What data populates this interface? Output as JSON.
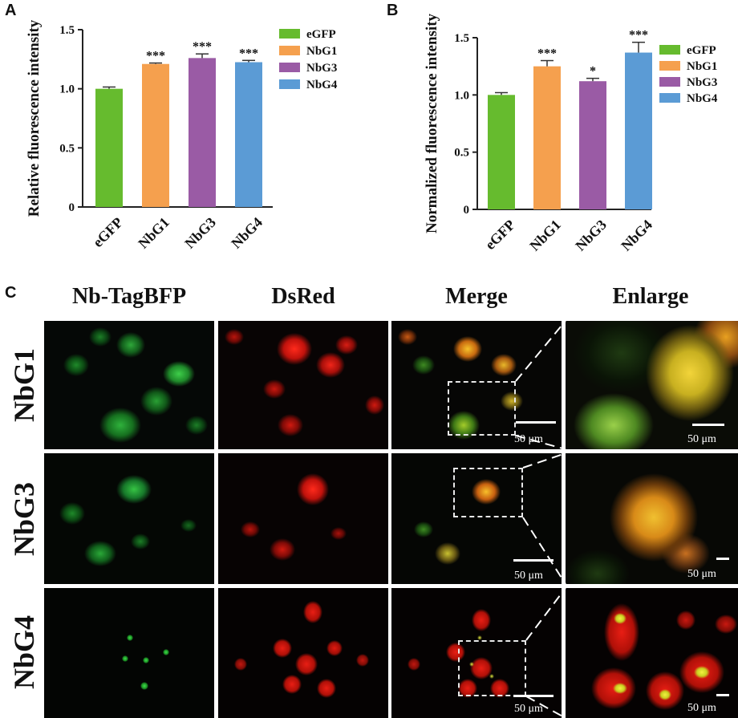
{
  "panels": {
    "a_letter": "A",
    "b_letter": "B",
    "c_letter": "C"
  },
  "chart_data": [
    {
      "type": "bar",
      "panel": "A",
      "ylabel": "Relative fluorescence intensity",
      "xlabel": "",
      "categories": [
        "eGFP",
        "NbG1",
        "NbG3",
        "NbG4"
      ],
      "values": [
        1.0,
        1.21,
        1.26,
        1.225
      ],
      "errors": [
        0.015,
        0.008,
        0.035,
        0.015
      ],
      "significance": [
        "",
        "***",
        "***",
        "***"
      ],
      "colors": [
        "#66BB2E",
        "#F5A04E",
        "#9A5BA5",
        "#5B9BD5"
      ],
      "ylim": [
        0,
        1.5
      ],
      "yticks": [
        0,
        0.5,
        1.0,
        1.5
      ],
      "ytick_labels": [
        "0",
        "0.5",
        "1.0",
        "1.5"
      ],
      "legend": [
        "eGFP",
        "NbG1",
        "NbG3",
        "NbG4"
      ],
      "legend_position": "top-right",
      "grid": false
    },
    {
      "type": "bar",
      "panel": "B",
      "ylabel": "Normalized fluorescence intensity",
      "xlabel": "",
      "categories": [
        "eGFP",
        "NbG1",
        "NbG3",
        "NbG4"
      ],
      "values": [
        1.0,
        1.25,
        1.12,
        1.37
      ],
      "errors": [
        0.02,
        0.05,
        0.025,
        0.09
      ],
      "significance": [
        "",
        "***",
        "*",
        "***"
      ],
      "colors": [
        "#66BB2E",
        "#F5A04E",
        "#9A5BA5",
        "#5B9BD5"
      ],
      "ylim": [
        0,
        1.5
      ],
      "yticks": [
        0,
        0.5,
        1.0,
        1.5
      ],
      "ytick_labels": [
        "0",
        "0.5",
        "1.0",
        "1.5"
      ],
      "legend": [
        "eGFP",
        "NbG1",
        "NbG3",
        "NbG4"
      ],
      "legend_position": "top-right",
      "grid": false
    }
  ],
  "micrograph": {
    "columns": [
      "Nb-TagBFP",
      "DsRed",
      "Merge",
      "Enlarge"
    ],
    "rows": [
      "NbG1",
      "NbG3",
      "NbG4"
    ],
    "scale_label": "50 μm"
  }
}
